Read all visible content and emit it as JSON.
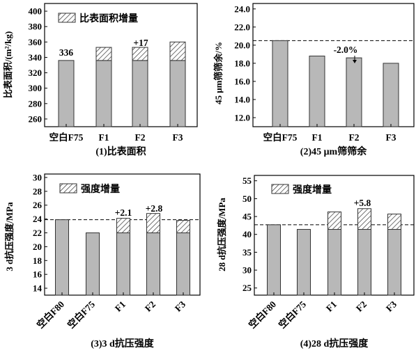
{
  "chart_data": [
    {
      "type": "bar",
      "caption": "(1)比表面积",
      "ylabel": "比表面积/(m²/kg)",
      "ylim": [
        250,
        410
      ],
      "yticks": [
        "260",
        "280",
        "300",
        "320",
        "340",
        "360",
        "380",
        "400"
      ],
      "categories": [
        "空白F75",
        "F1",
        "F2",
        "F3"
      ],
      "base_values": [
        336,
        336,
        336,
        336
      ],
      "increment_values": [
        0,
        17,
        17,
        24
      ],
      "legend": "比表面积增量",
      "annotations": [
        "336",
        "+17"
      ],
      "reference_line": null
    },
    {
      "type": "bar",
      "caption": "(2)45 μm筛筛余",
      "ylabel": "45 μm筛筛余/%",
      "ylim": [
        11,
        24.6
      ],
      "yticks": [
        "12.0",
        "14.0",
        "16.0",
        "18.0",
        "20.0",
        "22.0",
        "24.0"
      ],
      "categories": [
        "空白F75",
        "F1",
        "F2",
        "F3"
      ],
      "base_values": [
        20.5,
        18.8,
        18.6,
        18.0
      ],
      "increment_values": [
        0,
        0,
        0,
        0
      ],
      "legend": "",
      "annotations": [
        "-2.0%"
      ],
      "reference_line": 20.5
    },
    {
      "type": "bar",
      "caption": "(3)3 d抗压强度",
      "ylabel": "3 d抗压强度/MPa",
      "ylim": [
        13,
        30.5
      ],
      "yticks": [
        "14",
        "16",
        "18",
        "20",
        "22",
        "24",
        "26",
        "28",
        "30"
      ],
      "categories": [
        "空白F80",
        "空白F75",
        "F1",
        "F2",
        "F3"
      ],
      "base_values": [
        23.9,
        22.0,
        22.0,
        22.0,
        22.0
      ],
      "increment_values": [
        0,
        0,
        2.1,
        2.8,
        1.8
      ],
      "legend": "强度增量",
      "annotations": [
        "+2.1",
        "+2.8"
      ],
      "reference_line": 23.9
    },
    {
      "type": "bar",
      "caption": "(4)28 d抗压强度",
      "ylabel": "28 d抗压强度/MPa",
      "ylim": [
        23,
        56.5
      ],
      "yticks": [
        "25",
        "30",
        "35",
        "40",
        "45",
        "50",
        "55"
      ],
      "categories": [
        "空白F80",
        "空白F75",
        "F1",
        "F2",
        "F3"
      ],
      "base_values": [
        42.7,
        41.4,
        41.4,
        41.4,
        41.4
      ],
      "increment_values": [
        0,
        0,
        4.9,
        5.8,
        4.3
      ],
      "legend": "强度增量",
      "annotations": [
        "+5.8"
      ],
      "reference_line": 42.7
    }
  ],
  "colors": {
    "bar_fill": "#b8b8b8",
    "stroke": "#333333"
  }
}
